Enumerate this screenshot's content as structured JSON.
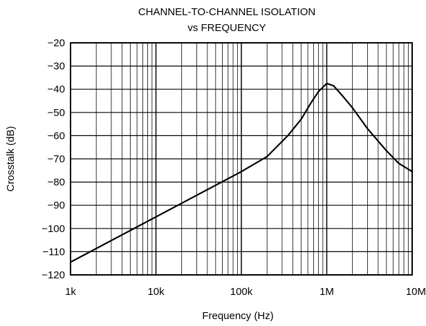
{
  "chart_data": {
    "type": "line",
    "title_line1": "CHANNEL-TO-CHANNEL ISOLATION",
    "title_line2": "vs FREQUENCY",
    "xlabel": "Frequency (Hz)",
    "ylabel": "Crosstalk (dB)",
    "x_scale": "log",
    "xlim": [
      1000,
      10000000
    ],
    "ylim": [
      -120,
      -20
    ],
    "grid": true,
    "x_ticks": [
      {
        "value": 1000,
        "label": "1k"
      },
      {
        "value": 10000,
        "label": "10k"
      },
      {
        "value": 100000,
        "label": "100k"
      },
      {
        "value": 1000000,
        "label": "1M"
      },
      {
        "value": 10000000,
        "label": "10M"
      }
    ],
    "y_ticks": [
      {
        "value": -20,
        "label": "−20"
      },
      {
        "value": -30,
        "label": "−30"
      },
      {
        "value": -40,
        "label": "−40"
      },
      {
        "value": -50,
        "label": "−50"
      },
      {
        "value": -60,
        "label": "−60"
      },
      {
        "value": -70,
        "label": "−70"
      },
      {
        "value": -80,
        "label": "−80"
      },
      {
        "value": -90,
        "label": "−90"
      },
      {
        "value": -100,
        "label": "−100"
      },
      {
        "value": -110,
        "label": "−110"
      },
      {
        "value": -120,
        "label": "−120"
      }
    ],
    "series": [
      {
        "color": "#000000",
        "x": [
          1000,
          10000,
          100000,
          200000,
          350000,
          500000,
          650000,
          800000,
          1000000,
          1200000,
          1500000,
          2000000,
          3000000,
          5000000,
          7000000,
          10000000
        ],
        "y": [
          -114.5,
          -95,
          -75.5,
          -69,
          -60,
          -53,
          -46,
          -41,
          -37.5,
          -38.5,
          -42.5,
          -48,
          -57,
          -66.5,
          -72,
          -75.5
        ]
      }
    ]
  }
}
